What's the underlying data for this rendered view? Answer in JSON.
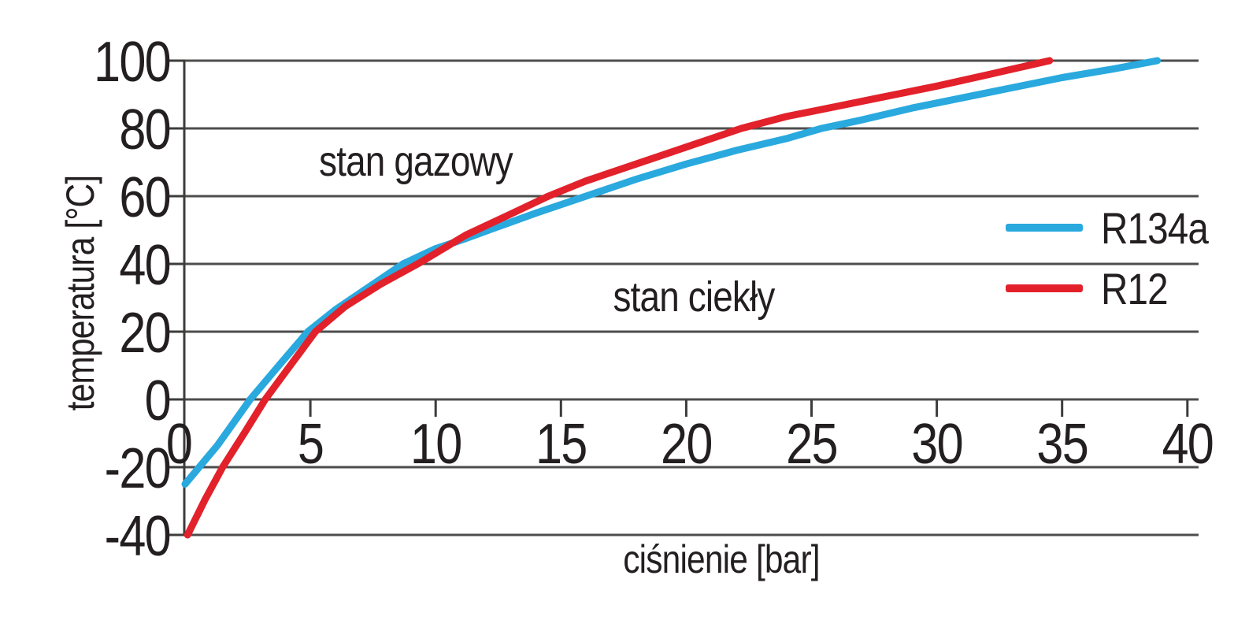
{
  "figure": {
    "background": "#ffffff",
    "text_color": "#231F20",
    "grid_color": "#4D4D4D",
    "axis_color": "#3C3C3B"
  },
  "chart_data": {
    "type": "line",
    "title": "",
    "xlabel": "ciśnienie [bar]",
    "ylabel": "temperatura [°C]",
    "xlim": [
      0,
      40
    ],
    "ylim": [
      -40,
      100
    ],
    "x_ticks": [
      0,
      5,
      10,
      15,
      20,
      25,
      30,
      35,
      40
    ],
    "y_ticks": [
      100,
      80,
      60,
      40,
      20,
      0,
      -20,
      -40
    ],
    "grid": "horizontal-lines-only, x-axis drawn at 0 °C",
    "legend_position": "right-middle",
    "annotations": [
      {
        "text": "stan gazowy",
        "x": 9.2,
        "y": 70
      },
      {
        "text": "stan ciekły",
        "x": 20.3,
        "y": 30
      }
    ],
    "series": [
      {
        "name": "R134a",
        "color": "#29A9DE",
        "points": [
          [
            0,
            -25
          ],
          [
            1.3,
            -13.5
          ],
          [
            2.6,
            0
          ],
          [
            3.8,
            10.5
          ],
          [
            4.9,
            20
          ],
          [
            6,
            26.5
          ],
          [
            7.3,
            33
          ],
          [
            8.7,
            40
          ],
          [
            10,
            44.5
          ],
          [
            11.2,
            47.5
          ],
          [
            12.5,
            51
          ],
          [
            14,
            55
          ],
          [
            16,
            60
          ],
          [
            18,
            65
          ],
          [
            20,
            69.5
          ],
          [
            22,
            73.5
          ],
          [
            24,
            77
          ],
          [
            25.4,
            80
          ],
          [
            27,
            82.5
          ],
          [
            29,
            86
          ],
          [
            31,
            89
          ],
          [
            33,
            92
          ],
          [
            35,
            95
          ],
          [
            37,
            97.5
          ],
          [
            38.8,
            100
          ]
        ]
      },
      {
        "name": "R12",
        "color": "#E2212B",
        "points": [
          [
            0.1,
            -40
          ],
          [
            0.8,
            -29.5
          ],
          [
            1.5,
            -20
          ],
          [
            2.4,
            -9.5
          ],
          [
            3.2,
            0
          ],
          [
            4.2,
            10
          ],
          [
            5.2,
            20
          ],
          [
            6.4,
            27.5
          ],
          [
            7.8,
            34
          ],
          [
            9.4,
            40.5
          ],
          [
            11.2,
            48.5
          ],
          [
            12.5,
            53
          ],
          [
            14.5,
            60
          ],
          [
            16,
            64.5
          ],
          [
            18,
            69.5
          ],
          [
            20,
            74.5
          ],
          [
            22.2,
            80
          ],
          [
            24,
            83.5
          ],
          [
            26,
            86.5
          ],
          [
            28,
            89.5
          ],
          [
            30,
            92.5
          ],
          [
            32,
            95.8
          ],
          [
            34.5,
            100
          ]
        ]
      }
    ]
  },
  "legend": {
    "entries": [
      {
        "label": "R134a",
        "color": "#29A9DE"
      },
      {
        "label": "R12",
        "color": "#E2212B"
      }
    ]
  }
}
